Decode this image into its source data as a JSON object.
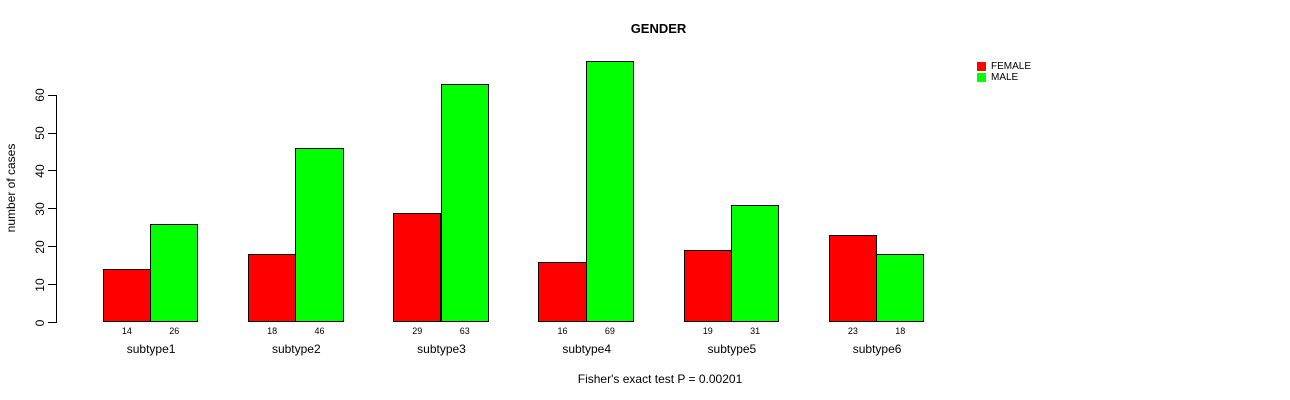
{
  "chart_data": {
    "type": "bar",
    "title": "GENDER",
    "ylabel": "number of cases",
    "xlabel": "",
    "caption": "Fisher's exact test P = 0.00201",
    "categories": [
      "subtype1",
      "subtype2",
      "subtype3",
      "subtype4",
      "subtype5",
      "subtype6"
    ],
    "series": [
      {
        "name": "FEMALE",
        "color": "#ff0000",
        "values": [
          14,
          18,
          29,
          16,
          19,
          23
        ]
      },
      {
        "name": "MALE",
        "color": "#00ff00",
        "values": [
          26,
          46,
          63,
          69,
          31,
          18
        ]
      }
    ],
    "y_ticks": [
      0,
      10,
      20,
      30,
      40,
      50,
      60
    ],
    "ylim": [
      0,
      70
    ],
    "grid": false,
    "bar_value_labels_shown": true,
    "legend_position": "top-right",
    "bar_border_color": "#000000",
    "background_color": "#ffffff",
    "text_color": "#000000"
  }
}
